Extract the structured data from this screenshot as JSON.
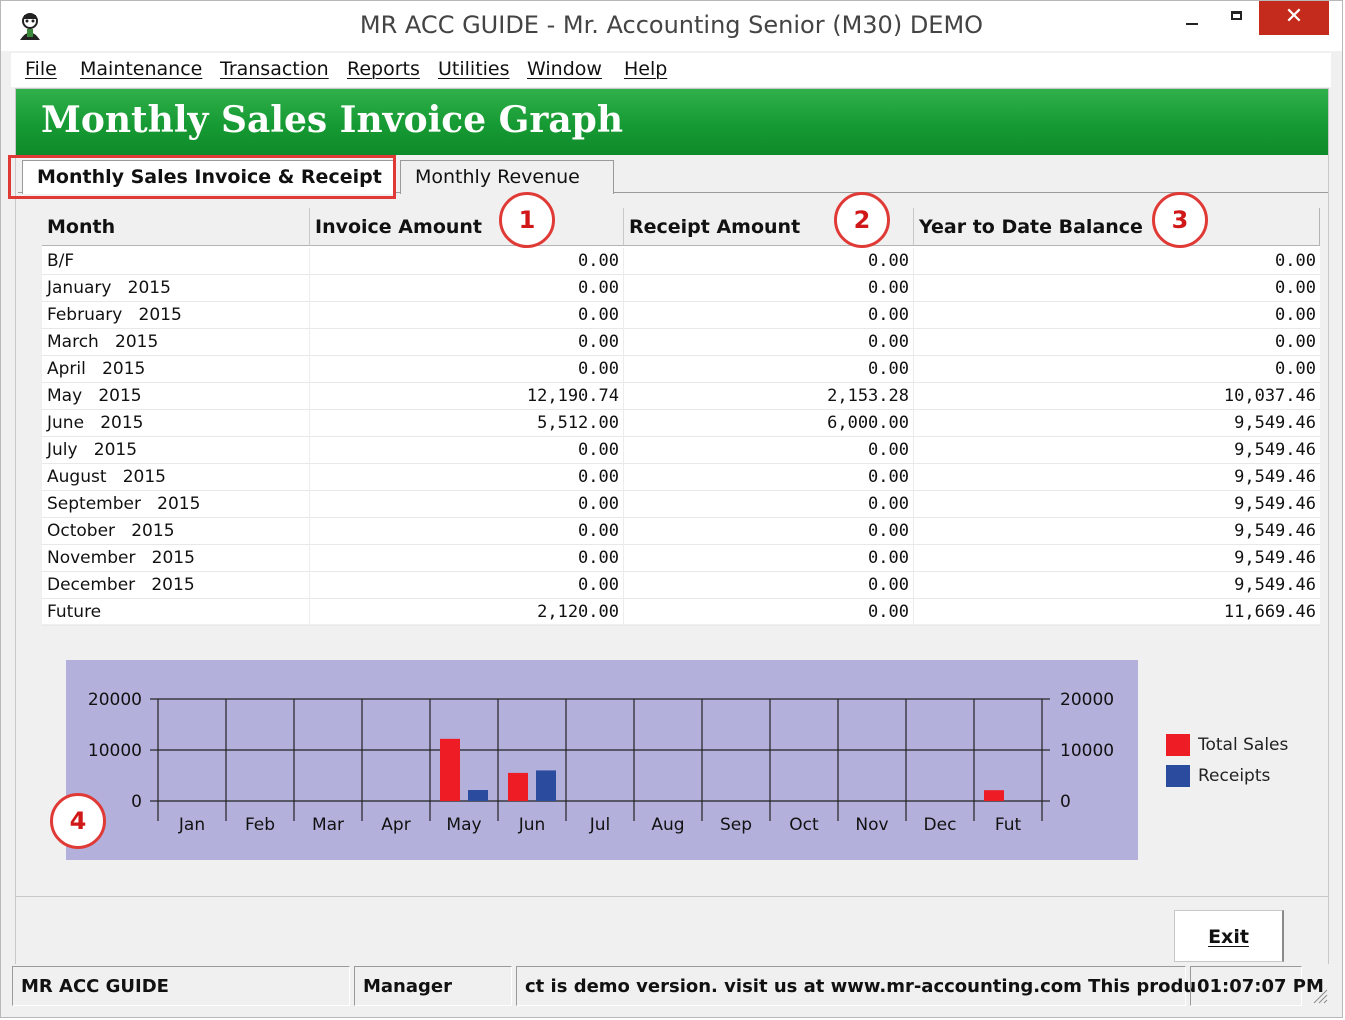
{
  "window": {
    "title": "MR ACC GUIDE - Mr. Accounting Senior (M30) DEMO",
    "close_glyph": "✕"
  },
  "menu": [
    "File",
    "Maintenance",
    "Transaction",
    "Reports",
    "Utilities",
    "Window",
    "Help"
  ],
  "banner": {
    "title": "Monthly Sales Invoice Graph"
  },
  "tabs": [
    {
      "label": "Monthly Sales Invoice & Receipt",
      "active": true
    },
    {
      "label": "Monthly Revenue",
      "active": false
    }
  ],
  "grid": {
    "columns": [
      "Month",
      "Invoice Amount",
      "Receipt Amount",
      "Year to Date Balance"
    ],
    "rows": [
      {
        "month": "B/F",
        "invoice": "0.00",
        "receipt": "0.00",
        "ytd": "0.00"
      },
      {
        "month": "January   2015",
        "invoice": "0.00",
        "receipt": "0.00",
        "ytd": "0.00"
      },
      {
        "month": "February   2015",
        "invoice": "0.00",
        "receipt": "0.00",
        "ytd": "0.00"
      },
      {
        "month": "March   2015",
        "invoice": "0.00",
        "receipt": "0.00",
        "ytd": "0.00"
      },
      {
        "month": "April   2015",
        "invoice": "0.00",
        "receipt": "0.00",
        "ytd": "0.00"
      },
      {
        "month": "May   2015",
        "invoice": "12,190.74",
        "receipt": "2,153.28",
        "ytd": "10,037.46"
      },
      {
        "month": "June   2015",
        "invoice": "5,512.00",
        "receipt": "6,000.00",
        "ytd": "9,549.46"
      },
      {
        "month": "July   2015",
        "invoice": "0.00",
        "receipt": "0.00",
        "ytd": "9,549.46"
      },
      {
        "month": "August   2015",
        "invoice": "0.00",
        "receipt": "0.00",
        "ytd": "9,549.46"
      },
      {
        "month": "September   2015",
        "invoice": "0.00",
        "receipt": "0.00",
        "ytd": "9,549.46"
      },
      {
        "month": "October   2015",
        "invoice": "0.00",
        "receipt": "0.00",
        "ytd": "9,549.46"
      },
      {
        "month": "November   2015",
        "invoice": "0.00",
        "receipt": "0.00",
        "ytd": "9,549.46"
      },
      {
        "month": "December   2015",
        "invoice": "0.00",
        "receipt": "0.00",
        "ytd": "9,549.46"
      },
      {
        "month": "Future",
        "invoice": "2,120.00",
        "receipt": "0.00",
        "ytd": "11,669.46"
      }
    ]
  },
  "callouts": [
    "1",
    "2",
    "3",
    "4"
  ],
  "chart_data": {
    "type": "bar",
    "categories": [
      "Jan",
      "Feb",
      "Mar",
      "Apr",
      "May",
      "Jun",
      "Jul",
      "Aug",
      "Sep",
      "Oct",
      "Nov",
      "Dec",
      "Fut"
    ],
    "series": [
      {
        "name": "Total Sales",
        "color": "#ee1c25",
        "values": [
          0,
          0,
          0,
          0,
          12190.74,
          5512.0,
          0,
          0,
          0,
          0,
          0,
          0,
          2120.0
        ]
      },
      {
        "name": "Receipts",
        "color": "#2b4c9e",
        "values": [
          0,
          0,
          0,
          0,
          2153.28,
          6000.0,
          0,
          0,
          0,
          0,
          0,
          0,
          0
        ]
      }
    ],
    "ylim": [
      0,
      20000
    ],
    "yticks": [
      "0",
      "10000",
      "20000"
    ],
    "grid": true,
    "legend": "right",
    "background": "#b3b1dc"
  },
  "exit_button": {
    "label": "Exit"
  },
  "status": {
    "company": "MR ACC GUIDE",
    "user": "Manager",
    "marquee": "ct is demo version.  visit us at www.mr-accounting.com This produ",
    "time": "01:07:07 PM"
  }
}
